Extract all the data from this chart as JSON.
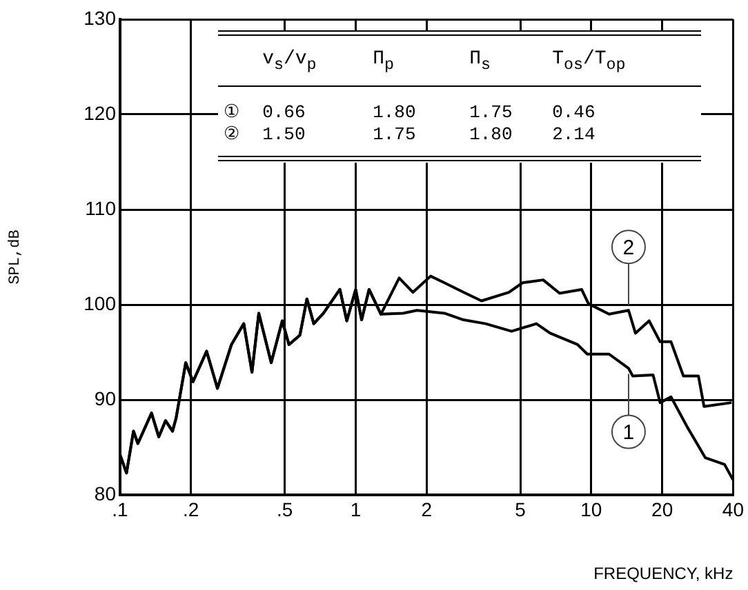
{
  "chart_data": {
    "type": "line",
    "xlabel": "FREQUENCY, kHz",
    "ylabel": "SPL,dB",
    "log": "x",
    "xlim": [
      0.1,
      40
    ],
    "ylim": [
      80,
      130
    ],
    "xticks": [
      {
        "value": 0.1,
        "label": ".1"
      },
      {
        "value": 0.2,
        "label": ".2"
      },
      {
        "value": 0.5,
        "label": ".5"
      },
      1,
      2,
      5,
      10,
      20,
      40
    ],
    "yticks": [
      80,
      90,
      100,
      110,
      120,
      130
    ],
    "grid": true,
    "legend": false,
    "marker": "none",
    "line_style": "solid",
    "series": [
      {
        "name": "1",
        "color": "#000000",
        "x": [
          0.1,
          0.1065,
          0.114,
          0.119,
          0.136,
          0.146,
          0.156,
          0.167,
          0.173,
          0.19,
          0.204,
          0.233,
          0.259,
          0.297,
          0.335,
          0.363,
          0.388,
          0.438,
          0.488,
          0.521,
          0.58,
          0.621,
          0.664,
          0.73,
          0.857,
          0.917,
          1.0,
          1.06,
          1.14,
          1.28,
          1.59,
          1.82,
          2.38,
          2.87,
          3.56,
          4.59,
          5.85,
          6.69,
          8.75,
          9.62,
          11.9,
          14.4,
          15.0,
          18.3,
          19.6,
          21.8,
          25.6,
          30.5,
          36.8,
          39.9
        ],
        "values": [
          84.2,
          82.3,
          86.7,
          85.4,
          88.6,
          86.1,
          87.8,
          86.7,
          88.1,
          93.9,
          91.9,
          95.1,
          91.2,
          95.8,
          98.0,
          92.9,
          99.1,
          93.9,
          98.3,
          95.8,
          96.8,
          100.6,
          98.0,
          99.1,
          101.6,
          98.3,
          101.6,
          98.4,
          101.6,
          99.0,
          99.1,
          99.4,
          99.1,
          98.4,
          98.0,
          97.2,
          98.0,
          97.0,
          95.8,
          94.8,
          94.8,
          93.3,
          92.5,
          92.6,
          89.7,
          90.3,
          87.1,
          83.9,
          83.2,
          81.6
        ]
      },
      {
        "name": "2",
        "color": "#000000",
        "x": [
          0.1,
          0.1065,
          0.114,
          0.119,
          0.136,
          0.146,
          0.156,
          0.167,
          0.173,
          0.19,
          0.204,
          0.233,
          0.259,
          0.297,
          0.335,
          0.363,
          0.388,
          0.438,
          0.488,
          0.521,
          0.58,
          0.621,
          0.664,
          0.73,
          0.857,
          0.917,
          1.0,
          1.06,
          1.14,
          1.28,
          1.53,
          1.75,
          2.08,
          2.38,
          2.87,
          3.42,
          4.47,
          5.11,
          6.25,
          7.34,
          9.1,
          9.73,
          11.9,
          14.4,
          15.4,
          17.6,
          19.6,
          21.8,
          24.6,
          28.5,
          30.1,
          39.4
        ],
        "values": [
          84.2,
          82.3,
          86.7,
          85.4,
          88.6,
          86.1,
          87.8,
          86.7,
          88.1,
          93.9,
          91.9,
          95.1,
          91.2,
          95.8,
          98.0,
          92.9,
          99.1,
          93.9,
          98.3,
          95.8,
          96.8,
          100.6,
          98.0,
          99.1,
          101.6,
          98.3,
          101.6,
          98.4,
          101.6,
          99.0,
          102.8,
          101.3,
          103.0,
          102.3,
          101.3,
          100.4,
          101.3,
          102.3,
          102.6,
          101.2,
          101.6,
          100.1,
          99.0,
          99.4,
          97.0,
          98.3,
          96.1,
          96.1,
          92.5,
          92.5,
          89.3,
          89.7
        ]
      }
    ],
    "annotations": [
      "v$_{s}$/v$_{p}$",
      "Π$_{p}$",
      "Π$_{s}$",
      "T$_{os}$/T$_{op}$",
      "①",
      "0.66",
      "1.80",
      "1.75",
      "0.46",
      "②",
      "1.50",
      "1.75",
      "1.80",
      "2.14"
    ]
  }
}
